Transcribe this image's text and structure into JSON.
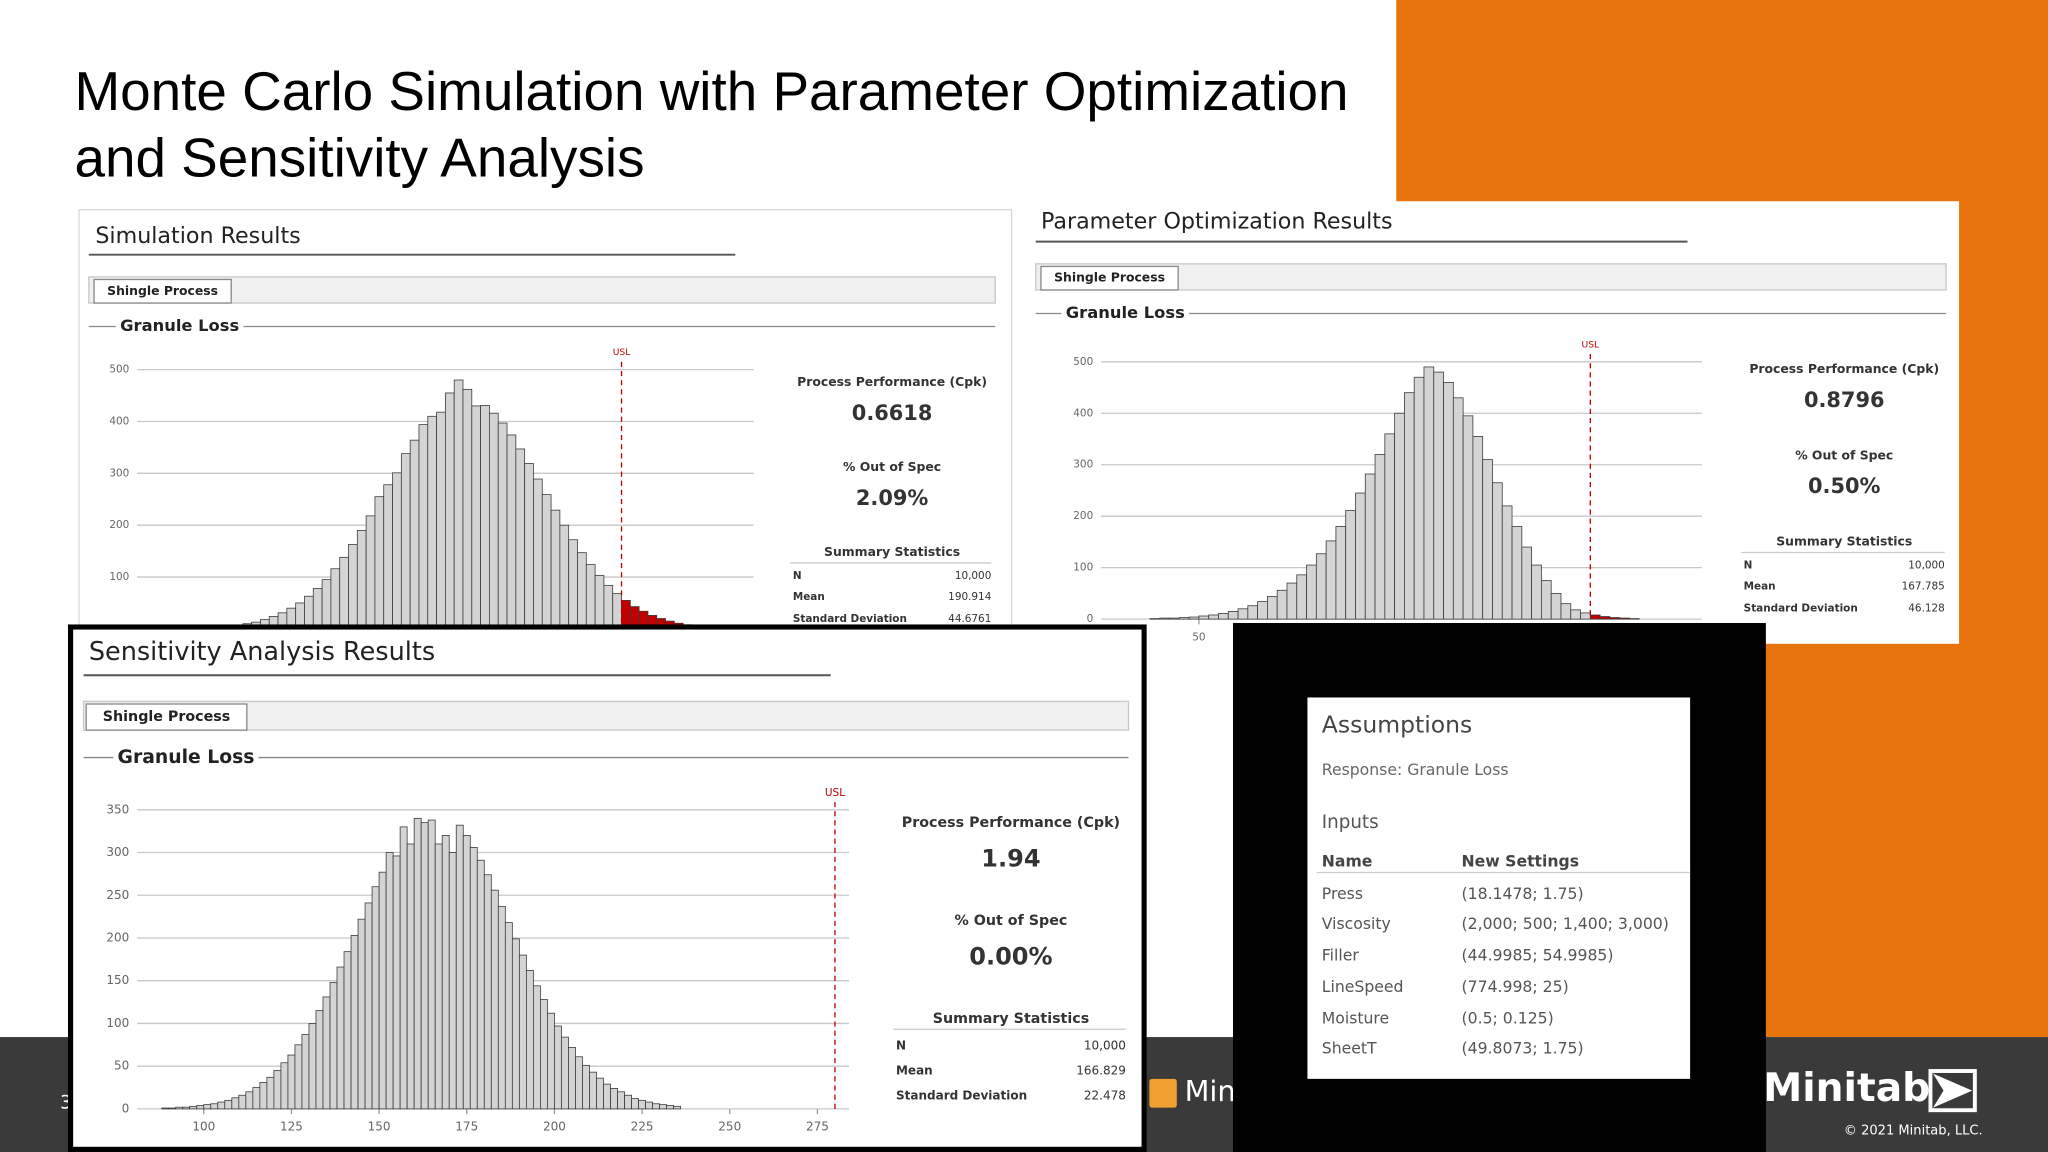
{
  "slide": {
    "title_lines": [
      "Monte Carlo Simulation with Parameter Optimization",
      "and Sensitivity Analysis"
    ],
    "page_number": "3",
    "brand": "Minitab",
    "copyright": "© 2021 Minitab, LLC."
  },
  "chart_data": [
    {
      "type": "histogram",
      "panel_title": "Simulation Results",
      "tab": "Shingle Process",
      "title": "Granule Loss",
      "bins": [
        50,
        55,
        60,
        65,
        70,
        75,
        80,
        85,
        90,
        95,
        100,
        105,
        110,
        115,
        120,
        125,
        130,
        135,
        140,
        145,
        150,
        155,
        160,
        165,
        170,
        175,
        180,
        185,
        190,
        195,
        200,
        205,
        210,
        215,
        220,
        225,
        230,
        235,
        240,
        245,
        250,
        255,
        260,
        265,
        270,
        275,
        280,
        285,
        290,
        295,
        300,
        305,
        310,
        315,
        320,
        325,
        330,
        335
      ],
      "values": [
        4,
        5,
        7,
        10,
        13,
        18,
        24,
        31,
        40,
        50,
        63,
        78,
        95,
        116,
        138,
        163,
        190,
        218,
        255,
        278,
        301,
        338,
        364,
        394,
        410,
        418,
        455,
        480,
        462,
        430,
        431,
        416,
        397,
        374,
        347,
        319,
        289,
        259,
        229,
        200,
        172,
        147,
        124,
        103,
        84,
        68,
        55,
        43,
        34,
        26,
        20,
        15,
        11,
        8,
        6,
        4,
        3
      ],
      "color": "#d4d4d4",
      "highlight_color": "#c00000",
      "xlim": [
        5,
        355
      ],
      "ylim": [
        0,
        500
      ],
      "yticks": [
        100,
        200,
        300,
        400,
        500
      ],
      "grid": true,
      "reference_line": {
        "label": "USL",
        "value": 280
      },
      "stats": {
        "cpk_label": "Process Performance (Cpk)",
        "cpk": "0.6618",
        "oos_label": "% Out of Spec",
        "oos": "2.09%",
        "summary_title": "Summary Statistics",
        "rows": [
          [
            "N",
            "10,000"
          ],
          [
            "Mean",
            "190.914"
          ],
          [
            "Standard Deviation",
            "44.6761"
          ]
        ]
      }
    },
    {
      "type": "histogram",
      "panel_title": "Parameter Optimization Results",
      "tab": "Shingle Process",
      "title": "Granule Loss",
      "bins": [
        25,
        30,
        35,
        40,
        45,
        50,
        55,
        60,
        65,
        70,
        75,
        80,
        85,
        90,
        95,
        100,
        105,
        110,
        115,
        120,
        125,
        130,
        135,
        140,
        145,
        150,
        155,
        160,
        165,
        170,
        175,
        180,
        185,
        190,
        195,
        200,
        205,
        210,
        215,
        220,
        225,
        230,
        235,
        240,
        245,
        250,
        255,
        260,
        265,
        270,
        275
      ],
      "values": [
        1,
        2,
        2,
        3,
        4,
        6,
        8,
        11,
        15,
        20,
        26,
        34,
        44,
        56,
        70,
        86,
        105,
        127,
        152,
        180,
        211,
        245,
        282,
        320,
        360,
        400,
        440,
        470,
        490,
        480,
        460,
        430,
        395,
        355,
        310,
        265,
        220,
        180,
        140,
        105,
        75,
        50,
        30,
        18,
        12,
        8,
        5,
        3,
        2,
        1
      ],
      "color": "#d4d4d4",
      "highlight_color": "#c00000",
      "xlim": [
        0,
        307
      ],
      "ylim": [
        0,
        500
      ],
      "xticks": [
        50
      ],
      "yticks": [
        0,
        100,
        200,
        300,
        400,
        500
      ],
      "grid": true,
      "reference_line": {
        "label": "USL",
        "value": 250
      },
      "stats": {
        "cpk_label": "Process Performance (Cpk)",
        "cpk": "0.8796",
        "oos_label": "% Out of Spec",
        "oos": "0.50%",
        "summary_title": "Summary Statistics",
        "rows": [
          [
            "N",
            "10,000"
          ],
          [
            "Mean",
            "167.785"
          ],
          [
            "Standard Deviation",
            "46.128"
          ]
        ]
      }
    },
    {
      "type": "histogram",
      "panel_title": "Sensitivity Analysis Results",
      "tab": "Shingle Process",
      "title": "Granule Loss",
      "bins": [
        88,
        90,
        92,
        94,
        96,
        98,
        100,
        102,
        104,
        106,
        108,
        110,
        112,
        114,
        116,
        118,
        120,
        122,
        124,
        126,
        128,
        130,
        132,
        134,
        136,
        138,
        140,
        142,
        144,
        146,
        148,
        150,
        152,
        154,
        156,
        158,
        160,
        162,
        164,
        166,
        168,
        170,
        172,
        174,
        176,
        178,
        180,
        182,
        184,
        186,
        188,
        190,
        192,
        194,
        196,
        198,
        200,
        202,
        204,
        206,
        208,
        210,
        212,
        214,
        216,
        218,
        220,
        222,
        224,
        226,
        228,
        230,
        232,
        234,
        236
      ],
      "values": [
        1,
        1,
        2,
        2,
        3,
        4,
        5,
        6,
        8,
        10,
        13,
        16,
        20,
        25,
        31,
        37,
        45,
        54,
        63,
        75,
        87,
        100,
        115,
        131,
        148,
        166,
        184,
        203,
        222,
        241,
        260,
        277,
        300,
        296,
        330,
        310,
        340,
        335,
        338,
        310,
        320,
        300,
        332,
        320,
        306,
        291,
        274,
        256,
        237,
        218,
        199,
        180,
        162,
        144,
        128,
        112,
        97,
        84,
        72,
        61,
        51,
        43,
        36,
        29,
        24,
        20,
        16,
        12,
        10,
        8,
        6,
        5,
        4,
        3
      ],
      "color": "#d4d4d4",
      "highlight_color": "#c00000",
      "xlim": [
        81,
        284
      ],
      "ylim": [
        0,
        350
      ],
      "xticks": [
        100,
        125,
        150,
        175,
        200,
        225,
        250,
        275
      ],
      "yticks": [
        0,
        50,
        100,
        150,
        200,
        250,
        300,
        350
      ],
      "grid": true,
      "reference_line": {
        "label": "USL",
        "value": 280
      },
      "stats": {
        "cpk_label": "Process Performance (Cpk)",
        "cpk": "1.94",
        "oos_label": "% Out of Spec",
        "oos": "0.00%",
        "summary_title": "Summary Statistics",
        "rows": [
          [
            "N",
            "10,000"
          ],
          [
            "Mean",
            "166.829"
          ],
          [
            "Standard Deviation",
            "22.478"
          ]
        ]
      }
    }
  ],
  "assumptions": {
    "title": "Assumptions",
    "response": "Response: Granule Loss",
    "inputs_title": "Inputs",
    "columns": [
      "Name",
      "New Settings"
    ],
    "rows": [
      [
        "Press",
        "(18.1478; 1.75)"
      ],
      [
        "Viscosity",
        "(2,000; 500; 1,400; 3,000)"
      ],
      [
        "Filler",
        "(44.9985; 54.9985)"
      ],
      [
        "LineSpeed",
        "(774.998; 25)"
      ],
      [
        "Moisture",
        "(0.5; 0.125)"
      ],
      [
        "SheetT",
        "(49.8073; 1.75)"
      ]
    ]
  }
}
